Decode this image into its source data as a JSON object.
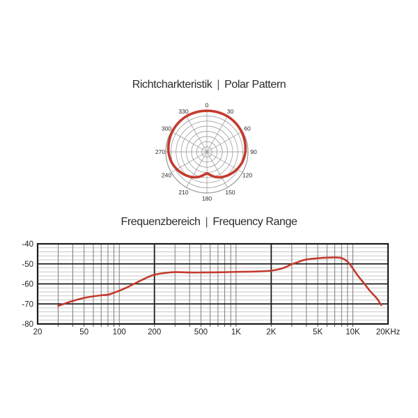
{
  "page": {
    "background": "#ffffff"
  },
  "polar_section": {
    "title_de": "Richtcharkteristik",
    "separator": "|",
    "title_en": "Polar Pattern"
  },
  "freq_section": {
    "title_de": "Frequenzbereich",
    "separator": "|",
    "title_en": "Frequency Range"
  },
  "colors": {
    "curve_red": "#c43a2d",
    "grid_major": "#1c1c1c",
    "grid_minor_h": "#b5b5b5",
    "grid_minor_v": "#6f6f6f",
    "polar_grid": "#8f8f8f",
    "label_text": "#1f1f1f"
  },
  "chart_data": [
    {
      "type": "polar",
      "name": "polar-pattern",
      "title": "Richtcharkteristik | Polar Pattern",
      "pattern": "cardioid",
      "rings": 8,
      "angle_step_deg": 30,
      "angle_labels": [
        "0",
        "30",
        "60",
        "90",
        "120",
        "150",
        "180",
        "210",
        "240",
        "270",
        "300",
        "330"
      ],
      "points": [
        {
          "a": 0,
          "r": 1.0
        },
        {
          "a": 15,
          "r": 1.0
        },
        {
          "a": 30,
          "r": 1.0
        },
        {
          "a": 45,
          "r": 0.99
        },
        {
          "a": 60,
          "r": 0.975
        },
        {
          "a": 75,
          "r": 0.955
        },
        {
          "a": 90,
          "r": 0.935
        },
        {
          "a": 105,
          "r": 0.9
        },
        {
          "a": 120,
          "r": 0.845
        },
        {
          "a": 135,
          "r": 0.78
        },
        {
          "a": 150,
          "r": 0.71
        },
        {
          "a": 162,
          "r": 0.64
        },
        {
          "a": 172,
          "r": 0.565
        },
        {
          "a": 180,
          "r": 0.52
        },
        {
          "a": 188,
          "r": 0.565
        },
        {
          "a": 198,
          "r": 0.64
        },
        {
          "a": 210,
          "r": 0.71
        },
        {
          "a": 225,
          "r": 0.78
        },
        {
          "a": 240,
          "r": 0.845
        },
        {
          "a": 255,
          "r": 0.9
        },
        {
          "a": 270,
          "r": 0.935
        },
        {
          "a": 285,
          "r": 0.955
        },
        {
          "a": 300,
          "r": 0.975
        },
        {
          "a": 315,
          "r": 0.99
        },
        {
          "a": 330,
          "r": 1.0
        },
        {
          "a": 345,
          "r": 1.0
        },
        {
          "a": 360,
          "r": 1.0
        }
      ]
    },
    {
      "type": "line",
      "name": "frequency-response",
      "title": "Frequenzbereich | Frequency Range",
      "x_scale": "log",
      "x_range_hz": [
        20,
        20000
      ],
      "x_tick_labels": [
        {
          "f": 20,
          "label": "20"
        },
        {
          "f": 50,
          "label": "50"
        },
        {
          "f": 100,
          "label": "100"
        },
        {
          "f": 200,
          "label": "200"
        },
        {
          "f": 500,
          "label": "500"
        },
        {
          "f": 1000,
          "label": "1K"
        },
        {
          "f": 2000,
          "label": "2K"
        },
        {
          "f": 5000,
          "label": "5K"
        },
        {
          "f": 10000,
          "label": "10K"
        },
        {
          "f": 20000,
          "label": "20KHz"
        }
      ],
      "x_major_lines_hz": [
        200,
        2000
      ],
      "x_minor_lines_hz": [
        30,
        40,
        50,
        60,
        70,
        80,
        90,
        100,
        300,
        400,
        500,
        600,
        700,
        800,
        900,
        1000,
        3000,
        4000,
        5000,
        6000,
        7000,
        8000,
        9000,
        10000
      ],
      "ylim": [
        -80,
        -40
      ],
      "y_tick_labels": [
        "-40",
        "-50",
        "-60",
        "-70",
        "-80"
      ],
      "y_major_step_db": 10,
      "y_minor_step_db": 2,
      "series": [
        {
          "name": "response-curve",
          "points_hz_db": [
            [
              30,
              -71
            ],
            [
              35,
              -69.6
            ],
            [
              40,
              -68.5
            ],
            [
              50,
              -67
            ],
            [
              60,
              -66.2
            ],
            [
              70,
              -65.7
            ],
            [
              80,
              -65.4
            ],
            [
              90,
              -64.4
            ],
            [
              100,
              -63.4
            ],
            [
              120,
              -61.4
            ],
            [
              140,
              -59.4
            ],
            [
              170,
              -57
            ],
            [
              200,
              -55.4
            ],
            [
              250,
              -54.5
            ],
            [
              300,
              -54.1
            ],
            [
              400,
              -54.3
            ],
            [
              500,
              -54.3
            ],
            [
              700,
              -54.2
            ],
            [
              1000,
              -54
            ],
            [
              1500,
              -53.8
            ],
            [
              2000,
              -53.4
            ],
            [
              2500,
              -52.2
            ],
            [
              3000,
              -50.2
            ],
            [
              3500,
              -48.8
            ],
            [
              4000,
              -47.8
            ],
            [
              5000,
              -47.2
            ],
            [
              6000,
              -46.9
            ],
            [
              7000,
              -46.8
            ],
            [
              8000,
              -47.1
            ],
            [
              9000,
              -48.9
            ],
            [
              10000,
              -52.3
            ],
            [
              11000,
              -55.8
            ],
            [
              12500,
              -59.8
            ],
            [
              14000,
              -63.5
            ],
            [
              16000,
              -67.2
            ],
            [
              17500,
              -70.6
            ]
          ]
        }
      ]
    }
  ]
}
